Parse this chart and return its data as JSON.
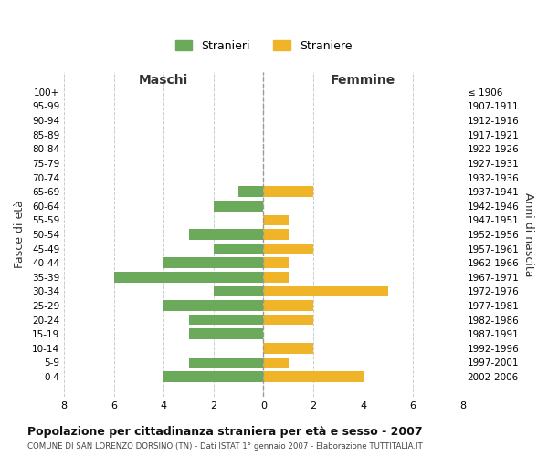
{
  "age_groups": [
    "100+",
    "95-99",
    "90-94",
    "85-89",
    "80-84",
    "75-79",
    "70-74",
    "65-69",
    "60-64",
    "55-59",
    "50-54",
    "45-49",
    "40-44",
    "35-39",
    "30-34",
    "25-29",
    "20-24",
    "15-19",
    "10-14",
    "5-9",
    "0-4"
  ],
  "birth_years": [
    "≤ 1906",
    "1907-1911",
    "1912-1916",
    "1917-1921",
    "1922-1926",
    "1927-1931",
    "1932-1936",
    "1937-1941",
    "1942-1946",
    "1947-1951",
    "1952-1956",
    "1957-1961",
    "1962-1966",
    "1967-1971",
    "1972-1976",
    "1977-1981",
    "1982-1986",
    "1987-1991",
    "1992-1996",
    "1997-2001",
    "2002-2006"
  ],
  "maschi": [
    0,
    0,
    0,
    0,
    0,
    0,
    0,
    1,
    2,
    0,
    3,
    2,
    4,
    6,
    2,
    4,
    3,
    3,
    0,
    3,
    4
  ],
  "femmine": [
    0,
    0,
    0,
    0,
    0,
    0,
    0,
    2,
    0,
    1,
    1,
    2,
    1,
    1,
    5,
    2,
    2,
    0,
    2,
    1,
    4
  ],
  "maschi_color": "#6aaa5a",
  "femmine_color": "#f0b429",
  "title": "Popolazione per cittadinanza straniera per età e sesso - 2007",
  "subtitle": "COMUNE DI SAN LORENZO DORSINO (TN) - Dati ISTAT 1° gennaio 2007 - Elaborazione TUTTITALIA.IT",
  "xlabel_left": "Maschi",
  "xlabel_right": "Femmine",
  "ylabel_left": "Fasce di età",
  "ylabel_right": "Anni di nascita",
  "legend_stranieri": "Stranieri",
  "legend_straniere": "Straniere",
  "xlim": 8,
  "background_color": "#ffffff",
  "grid_color": "#cccccc"
}
